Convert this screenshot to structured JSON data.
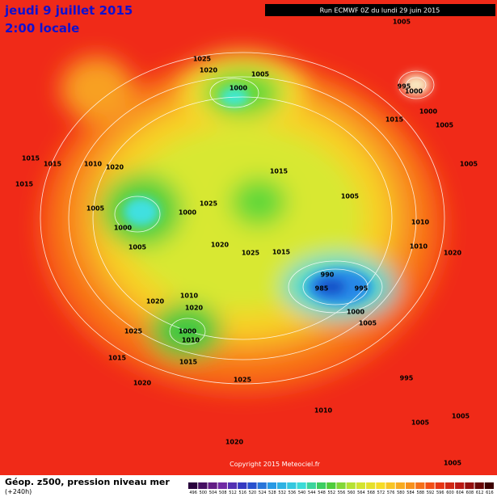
{
  "header": {
    "date": "jeudi 9 juillet 2015",
    "time": "2:00 locale",
    "run": "Run ECMWF 0Z du lundi 29 juin 2015"
  },
  "isobar_labels": [
    "1005",
    "1025",
    "1020",
    "1005",
    "1000",
    "995",
    "1000",
    "1000",
    "1015",
    "1005",
    "1015",
    "1015",
    "1010",
    "1020",
    "1015",
    "1005",
    "1015",
    "1005",
    "1025",
    "1000",
    "1005",
    "1010",
    "1000",
    "1010",
    "1020",
    "1025",
    "1015",
    "1020",
    "1005",
    "990",
    "985",
    "995",
    "1020",
    "1020",
    "1010",
    "1000",
    "1005",
    "1025",
    "1000",
    "1010",
    "1015",
    "1015",
    "995",
    "1020",
    "1025",
    "1010",
    "1005",
    "1005",
    "1020",
    "1005"
  ],
  "footer": {
    "copyright": "Copyright 2015 Meteociel.fr",
    "title": "Géop. z500, pression niveau mer",
    "lead": "(+240h)"
  },
  "legend": {
    "scale": [
      496,
      500,
      504,
      508,
      512,
      516,
      520,
      524,
      528,
      532,
      536,
      540,
      544,
      548,
      552,
      556,
      560,
      564,
      568,
      572,
      576,
      580,
      584,
      588,
      592,
      596,
      600,
      604,
      608,
      612,
      616
    ]
  }
}
